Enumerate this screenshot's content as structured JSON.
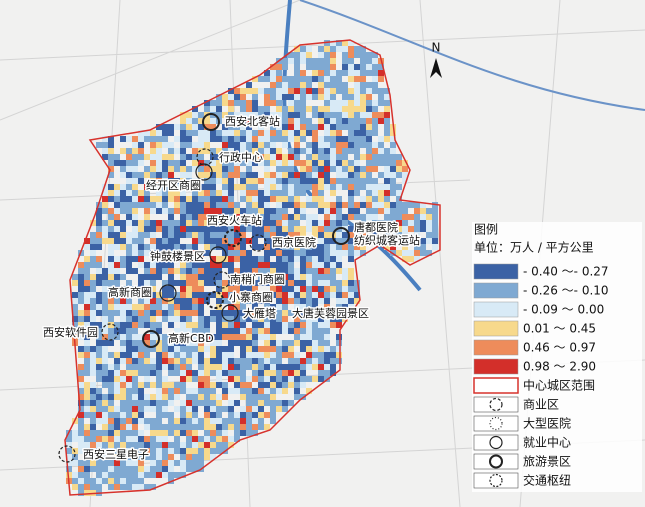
{
  "legend": {
    "title": "图例",
    "unit": "单位：万人 / 平方公里",
    "items": [
      {
        "label": "- 0.40 ～- 0.27",
        "color": "#3b62a5"
      },
      {
        "label": "- 0.26 ～- 0.10",
        "color": "#7fa9d2"
      },
      {
        "label": "- 0.09 ～ 0.00",
        "color": "#d8eaf6"
      },
      {
        "label": "0.01 ～ 0.45",
        "color": "#f7d98c"
      },
      {
        "label": "0.46 ～ 0.97",
        "color": "#ee8c5b"
      },
      {
        "label": "0.98 ～ 2.90",
        "color": "#d32f2a"
      }
    ],
    "symbols": [
      "中心城区范围",
      "商业区",
      "大型医院",
      "就业中心",
      "旅游景区",
      "交通枢纽"
    ]
  },
  "north": "N",
  "places": [
    "西安北客站",
    "行政中心",
    "经开区商圈",
    "西安火车站",
    "钟鼓楼景区",
    "西京医院",
    "唐都医院",
    "纺织城客运站",
    "南稍门商圈",
    "高新商圈",
    "小寨商圈",
    "大雁塔",
    "大唐芙蓉园景区",
    "西安软件园",
    "高新CBD",
    "西安三星电子"
  ]
}
